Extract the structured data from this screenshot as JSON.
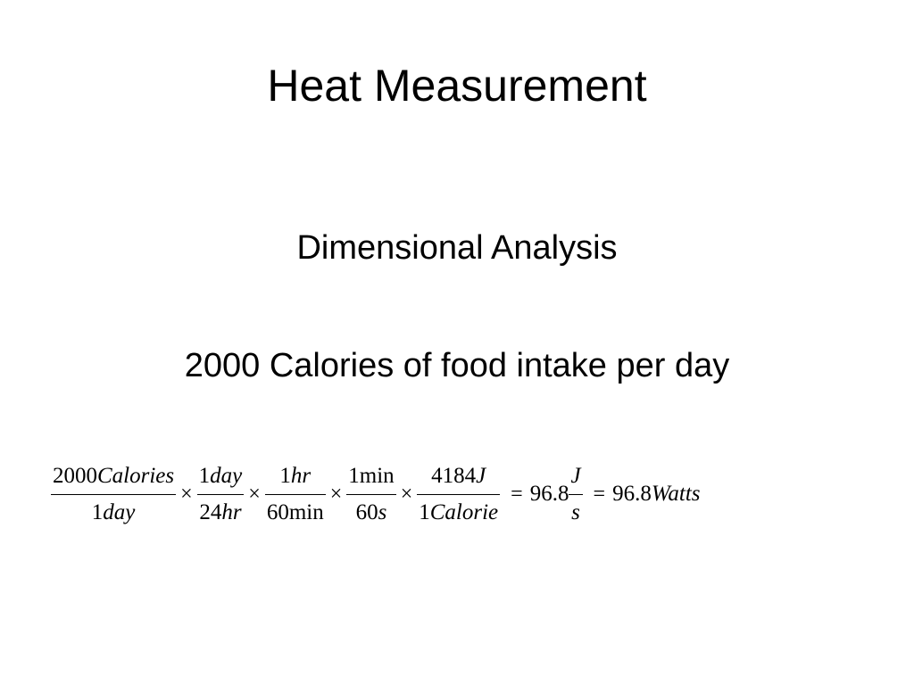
{
  "slide": {
    "title": "Heat Measurement",
    "subtitle": "Dimensional Analysis",
    "statement": "2000 Calories of food intake per day"
  },
  "equation": {
    "fractions": [
      {
        "num_value": "2000",
        "num_unit": "Calories",
        "den_value": "1",
        "den_unit": "day"
      },
      {
        "num_value": "1",
        "num_unit": "day",
        "den_value": "24",
        "den_unit": "hr"
      },
      {
        "num_value": "1",
        "num_unit": "hr",
        "den_value": "60",
        "den_unit": "min"
      },
      {
        "num_value": "1",
        "num_unit": "min",
        "den_value": "60",
        "den_unit": "s"
      },
      {
        "num_value": "4184",
        "num_unit": "J",
        "den_value": "1",
        "den_unit": "Calorie"
      }
    ],
    "times_symbol": "×",
    "equals_symbol": "=",
    "result_1": {
      "value": "96.8",
      "num_unit": "J",
      "den_unit": "s"
    },
    "result_2": {
      "value": "96.8",
      "unit": "Watts"
    }
  }
}
